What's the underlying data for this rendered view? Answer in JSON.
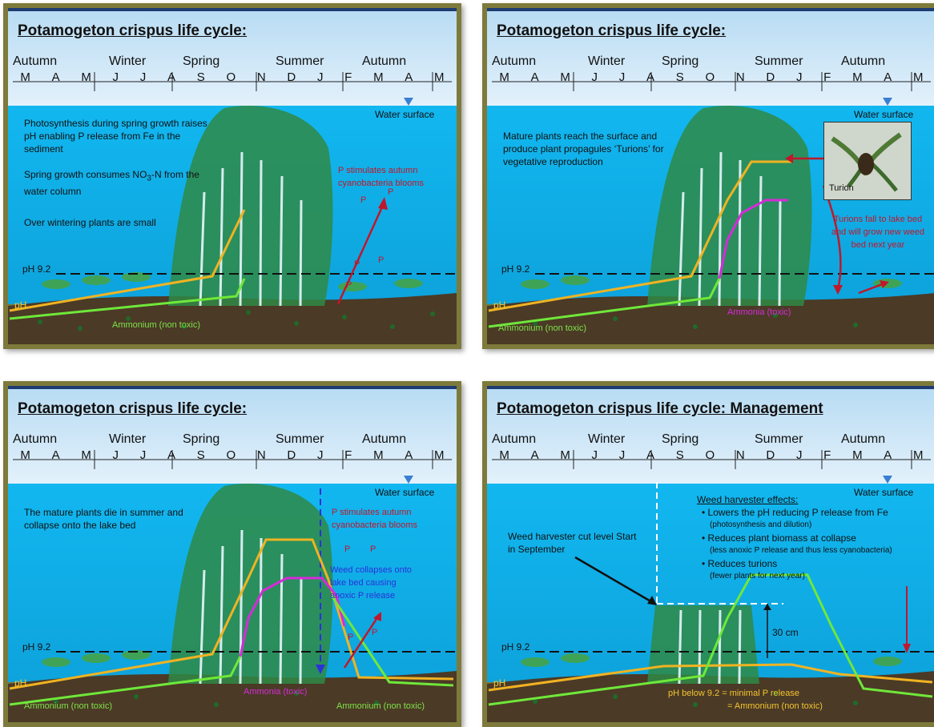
{
  "seasons": [
    "Autumn",
    "Winter",
    "Spring",
    "Summer",
    "Autumn"
  ],
  "months": [
    "M",
    "A",
    "M",
    "J",
    "J",
    "A",
    "S",
    "O",
    "N",
    "D",
    "J",
    "F",
    "M",
    "A",
    "M"
  ],
  "labels": {
    "water_surface": "Water surface",
    "ph_level": "pH 9.2",
    "ph": "pH",
    "ammonium": "Ammonium (non toxic)",
    "ammonia": "Ammonia (toxic)"
  },
  "panel1": {
    "title": "Potamogeton crispus life cycle:",
    "text1": "Photosynthesis during spring growth raises pH enabling P release from Fe in the sediment",
    "text2a": "Spring growth consumes NO",
    "text2sub": "3",
    "text2b": "-N from the water column",
    "text3": "Over wintering plants are small",
    "red_note": "P stimulates autumn cyanobacteria blooms",
    "p_marker": "P"
  },
  "panel2": {
    "title": "Potamogeton crispus life cycle:",
    "text1": "Mature plants reach the surface and produce plant propagules ‘Turions’ for vegetative reproduction",
    "photo_label": "Turion",
    "red_note": "Turions fall to lake bed and will grow new weed bed next year"
  },
  "panel3": {
    "title": "Potamogeton crispus life cycle:",
    "text1": "The mature plants die in summer and collapse onto the lake bed",
    "red_note": "P stimulates autumn cyanobacteria blooms",
    "blue_note": "Weed collapses onto lake bed causing anoxic P release",
    "p_marker": "P"
  },
  "panel4": {
    "title": "Potamogeton crispus life cycle: Management",
    "heading": "Weed harvester effects:",
    "bullet1": "Lowers the pH reducing P release from Fe",
    "bullet1_note": "(photosynthesis and dilution)",
    "bullet2": "Reduces plant biomass at collapse",
    "bullet2_note": "(less anoxic P release and thus less cyanobacteria)",
    "bullet3": "Reduces turions",
    "bullet3_note": "(fewer plants for next year)",
    "cut_label": "Weed harvester cut level Start in September",
    "height_label": "30 cm",
    "bottom_note1": "pH below 9.2 = minimal P release",
    "bottom_note2": "= Ammonium (non toxic)"
  },
  "colors": {
    "frame": "#7d7a3b",
    "water": "#19b8ee",
    "sky": "#c9e3f5",
    "sediment": "#4b3a26",
    "ph_line": "#f0b322",
    "ammonium_line": "#6fe83a",
    "ammonia_line": "#d62bd9",
    "red_arrow": "#c0172b"
  }
}
